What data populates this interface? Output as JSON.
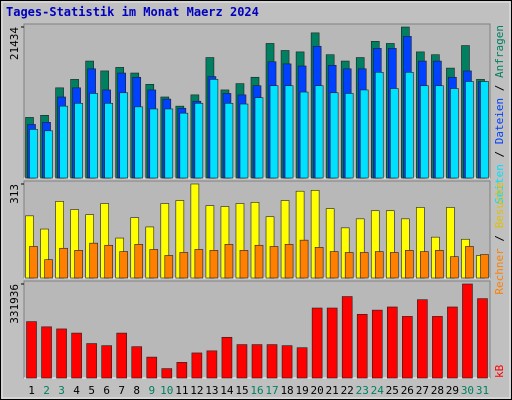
{
  "chart_data": [
    {
      "type": "bar",
      "title": "Tages-Statistik im Monat Maerz 2024",
      "ylim": [
        0,
        21434
      ],
      "yticks": [
        21434
      ],
      "legend_separator": " / ",
      "series": [
        {
          "name": "Anfragen",
          "color": "#008060",
          "values": [
            8600,
            8900,
            12800,
            14000,
            16600,
            15200,
            15700,
            14900,
            13300,
            11500,
            10200,
            11800,
            17100,
            12500,
            13400,
            14300,
            19100,
            18100,
            17900,
            20600,
            17500,
            16600,
            17100,
            19400,
            19100,
            21434,
            17900,
            17500,
            15600,
            18800,
            14000
          ]
        },
        {
          "name": "Dateien",
          "color": "#0040ff",
          "values": [
            7600,
            7900,
            11500,
            12800,
            15500,
            12500,
            14900,
            14300,
            12500,
            11200,
            9900,
            10900,
            14400,
            12000,
            11800,
            13100,
            16500,
            16200,
            15900,
            18700,
            16000,
            15500,
            15500,
            18400,
            18400,
            20100,
            16600,
            16600,
            14300,
            15200,
            13700
          ]
        },
        {
          "name": "Seiten",
          "color": "#00e0ff",
          "values": [
            6900,
            6700,
            10200,
            10600,
            12000,
            10600,
            12100,
            10100,
            9800,
            9800,
            9200,
            10600,
            14000,
            10600,
            10500,
            11400,
            13100,
            13100,
            12200,
            13100,
            12100,
            12000,
            12500,
            15000,
            12700,
            15000,
            13100,
            13100,
            12700,
            13700,
            13700
          ]
        }
      ]
    },
    {
      "type": "bar",
      "ylim": [
        0,
        313
      ],
      "yticks": [
        313
      ],
      "legend_separator": " / ",
      "series": [
        {
          "name": "Besuche",
          "color": "#ffff00",
          "values": [
            207,
            163,
            255,
            228,
            211,
            248,
            133,
            201,
            170,
            248,
            258,
            313,
            241,
            238,
            248,
            252,
            204,
            258,
            289,
            292,
            231,
            167,
            197,
            224,
            224,
            197,
            235,
            136,
            235,
            129,
            75
          ]
        },
        {
          "name": "Rechner",
          "color": "#ff8000",
          "values": [
            105,
            61,
            99,
            92,
            116,
            109,
            88,
            112,
            95,
            75,
            85,
            95,
            92,
            112,
            92,
            109,
            105,
            112,
            126,
            102,
            88,
            85,
            85,
            88,
            85,
            92,
            88,
            92,
            71,
            105,
            78
          ]
        }
      ]
    },
    {
      "type": "bar",
      "ylim": [
        0,
        331936
      ],
      "yticks": [
        331936
      ],
      "categories": [
        "1",
        "2",
        "3",
        "4",
        "5",
        "6",
        "7",
        "8",
        "9",
        "10",
        "11",
        "12",
        "13",
        "14",
        "15",
        "16",
        "17",
        "18",
        "19",
        "20",
        "21",
        "22",
        "23",
        "24",
        "25",
        "26",
        "27",
        "28",
        "29",
        "30",
        "31"
      ],
      "category_colors": [
        "#000000",
        "#008060",
        "#008060",
        "#000000",
        "#000000",
        "#000000",
        "#000000",
        "#000000",
        "#008060",
        "#008060",
        "#000000",
        "#000000",
        "#000000",
        "#000000",
        "#000000",
        "#008060",
        "#008060",
        "#000000",
        "#000000",
        "#000000",
        "#000000",
        "#000000",
        "#008060",
        "#008060",
        "#000000",
        "#000000",
        "#000000",
        "#000000",
        "#000000",
        "#008060",
        "#008060"
      ],
      "series": [
        {
          "name": "kB",
          "color": "#ff0000",
          "values": [
            199200,
            180700,
            173300,
            158600,
            121700,
            114300,
            158600,
            110600,
            73800,
            33200,
            55300,
            88500,
            95900,
            143800,
            118000,
            118000,
            118000,
            114300,
            107000,
            247100,
            247100,
            287700,
            225000,
            239700,
            250800,
            217600,
            276600,
            217600,
            250800,
            331936,
            280300
          ]
        }
      ]
    }
  ]
}
